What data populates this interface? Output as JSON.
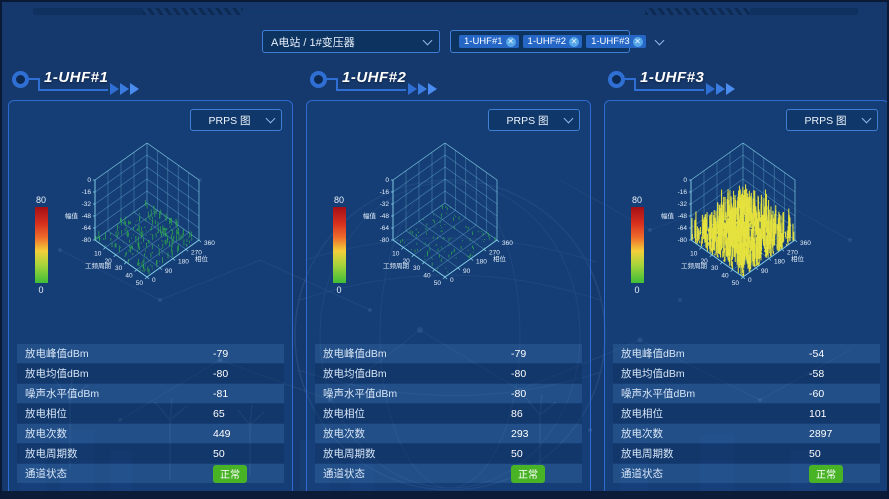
{
  "colors": {
    "background": "#16396d",
    "panel_border": "#2e6ad0",
    "accent_blue": "#2f6fd4",
    "wireframe": "#7bcde6",
    "status_ok": "#47b325",
    "spike_green": "#2fb14b",
    "spike_yellow": "#e6e23e"
  },
  "toolbar": {
    "station_select": {
      "value": "A电站 / 1#变压器"
    },
    "sensor_select": {
      "tags": [
        {
          "label": "1-UHF#1"
        },
        {
          "label": "1-UHF#2"
        },
        {
          "label": "1-UHF#3"
        }
      ]
    }
  },
  "panels": [
    {
      "title": "1-UHF#1",
      "chart_select": "PRPS 图",
      "metrics": [
        {
          "label": "放电峰值dBm",
          "value": "-79"
        },
        {
          "label": "放电均值dBm",
          "value": "-80"
        },
        {
          "label": "噪声水平值dBm",
          "value": "-81"
        },
        {
          "label": "放电相位",
          "value": "65"
        },
        {
          "label": "放电次数",
          "value": "449"
        },
        {
          "label": "放电周期数",
          "value": "50"
        },
        {
          "label": "通道状态",
          "value": "正常",
          "type": "badge"
        }
      ]
    },
    {
      "title": "1-UHF#2",
      "chart_select": "PRPS 图",
      "metrics": [
        {
          "label": "放电峰值dBm",
          "value": "-79"
        },
        {
          "label": "放电均值dBm",
          "value": "-80"
        },
        {
          "label": "噪声水平值dBm",
          "value": "-80"
        },
        {
          "label": "放电相位",
          "value": "86"
        },
        {
          "label": "放电次数",
          "value": "293"
        },
        {
          "label": "放电周期数",
          "value": "50"
        },
        {
          "label": "通道状态",
          "value": "正常",
          "type": "badge"
        }
      ]
    },
    {
      "title": "1-UHF#3",
      "chart_select": "PRPS 图",
      "metrics": [
        {
          "label": "放电峰值dBm",
          "value": "-54"
        },
        {
          "label": "放电均值dBm",
          "value": "-58"
        },
        {
          "label": "噪声水平值dBm",
          "value": "-60"
        },
        {
          "label": "放电相位",
          "value": "101"
        },
        {
          "label": "放电次数",
          "value": "2897"
        },
        {
          "label": "放电周期数",
          "value": "50"
        },
        {
          "label": "通道状态",
          "value": "正常",
          "type": "badge"
        }
      ]
    }
  ],
  "chart_data": [
    {
      "type": "prps-3d-scatter",
      "title": "PRPS 图 1-UHF#1",
      "zlabel": "幅值",
      "zticks": [
        0,
        -16,
        -32,
        -48,
        -64,
        -80
      ],
      "zrange": [
        -80,
        0
      ],
      "xlabel": "工频周期",
      "xticks": [
        10,
        20,
        30,
        40,
        50
      ],
      "xrange": [
        0,
        50
      ],
      "ylabel": "相位",
      "yticks": [
        0,
        90,
        180,
        270,
        360
      ],
      "yrange": [
        0,
        360
      ],
      "colorbar": {
        "max": 80,
        "min": 0
      },
      "points": {
        "count": 240,
        "amplitude_db_min": -80,
        "amplitude_db_max": -70,
        "color": "#2fb14b",
        "width": 0.7,
        "seed": 7
      }
    },
    {
      "type": "prps-3d-scatter",
      "title": "PRPS 图 1-UHF#2",
      "zlabel": "幅值",
      "zticks": [
        0,
        -16,
        -32,
        -48,
        -64,
        -80
      ],
      "zrange": [
        -80,
        0
      ],
      "xlabel": "工频周期",
      "xticks": [
        10,
        20,
        30,
        40,
        50
      ],
      "xrange": [
        0,
        50
      ],
      "ylabel": "相位",
      "yticks": [
        0,
        90,
        180,
        270,
        360
      ],
      "yrange": [
        0,
        360
      ],
      "colorbar": {
        "max": 80,
        "min": 0
      },
      "points": {
        "count": 110,
        "amplitude_db_min": -80,
        "amplitude_db_max": -75,
        "color": "#2fb14b",
        "width": 0.7,
        "seed": 13
      }
    },
    {
      "type": "prps-3d-scatter",
      "title": "PRPS 图 1-UHF#3",
      "zlabel": "幅值",
      "zticks": [
        0,
        -16,
        -32,
        -48,
        -64,
        -80
      ],
      "zrange": [
        -80,
        0
      ],
      "xlabel": "工频周期",
      "xticks": [
        10,
        20,
        30,
        40,
        50
      ],
      "xrange": [
        0,
        50
      ],
      "ylabel": "相位",
      "yticks": [
        0,
        90,
        180,
        270,
        360
      ],
      "yrange": [
        0,
        360
      ],
      "colorbar": {
        "max": 80,
        "min": 0
      },
      "points": {
        "count": 720,
        "amplitude_db_min": -78,
        "amplitude_db_max": -40,
        "color": "#e6e23e",
        "width": 1.1,
        "seed": 29
      }
    }
  ]
}
